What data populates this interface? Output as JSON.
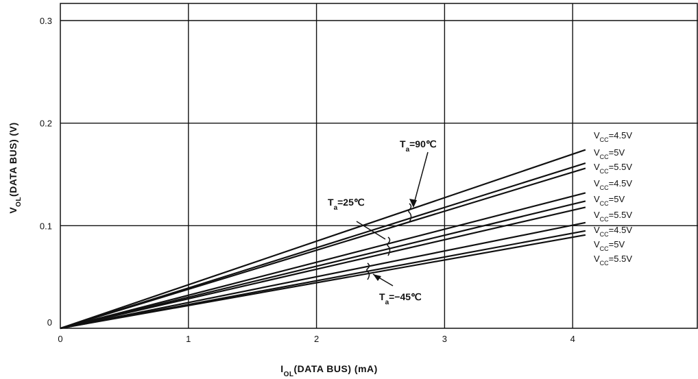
{
  "chart_data": {
    "type": "line",
    "xlabel": "I_OL(DATA BUS) (mA)",
    "ylabel": "V_OL(DATA BUS) (V)",
    "xlim": [
      0,
      5
    ],
    "ylim": [
      0,
      0.3
    ],
    "x_ticks": [
      "0",
      "1",
      "2",
      "3",
      "4"
    ],
    "y_ticks": [
      "0",
      "0.1",
      "0.2",
      "0.3"
    ],
    "grid": true,
    "series": [
      {
        "group": "T_a=90℃",
        "vcc": "V_CC=4.5V",
        "points": [
          [
            0,
            0
          ],
          [
            4.1,
            0.174
          ]
        ]
      },
      {
        "group": "T_a=90℃",
        "vcc": "V_CC=5V",
        "points": [
          [
            0,
            0
          ],
          [
            4.1,
            0.161
          ]
        ]
      },
      {
        "group": "T_a=90℃",
        "vcc": "V_CC=5.5V",
        "points": [
          [
            0,
            0
          ],
          [
            4.1,
            0.156
          ]
        ]
      },
      {
        "group": "T_a=25℃",
        "vcc": "V_CC=4.5V",
        "points": [
          [
            0,
            0
          ],
          [
            4.1,
            0.132
          ]
        ]
      },
      {
        "group": "T_a=25℃",
        "vcc": "V_CC=5V",
        "points": [
          [
            0,
            0
          ],
          [
            4.1,
            0.124
          ]
        ]
      },
      {
        "group": "T_a=25℃",
        "vcc": "V_CC=5.5V",
        "points": [
          [
            0,
            0
          ],
          [
            4.1,
            0.118
          ]
        ]
      },
      {
        "group": "T_a=−45℃",
        "vcc": "V_CC=4.5V",
        "points": [
          [
            0,
            0
          ],
          [
            4.1,
            0.103
          ]
        ]
      },
      {
        "group": "T_a=−45℃",
        "vcc": "V_CC=5V",
        "points": [
          [
            0,
            0
          ],
          [
            4.1,
            0.095
          ]
        ]
      },
      {
        "group": "T_a=−45℃",
        "vcc": "V_CC=5.5V",
        "points": [
          [
            0,
            0
          ],
          [
            4.1,
            0.091
          ]
        ]
      }
    ],
    "annotations": [
      {
        "key": "ta90",
        "text": "T_a=90℃"
      },
      {
        "key": "ta25",
        "text": "T_a=25℃"
      },
      {
        "key": "tam45",
        "text": "T_a=−45℃"
      }
    ]
  }
}
